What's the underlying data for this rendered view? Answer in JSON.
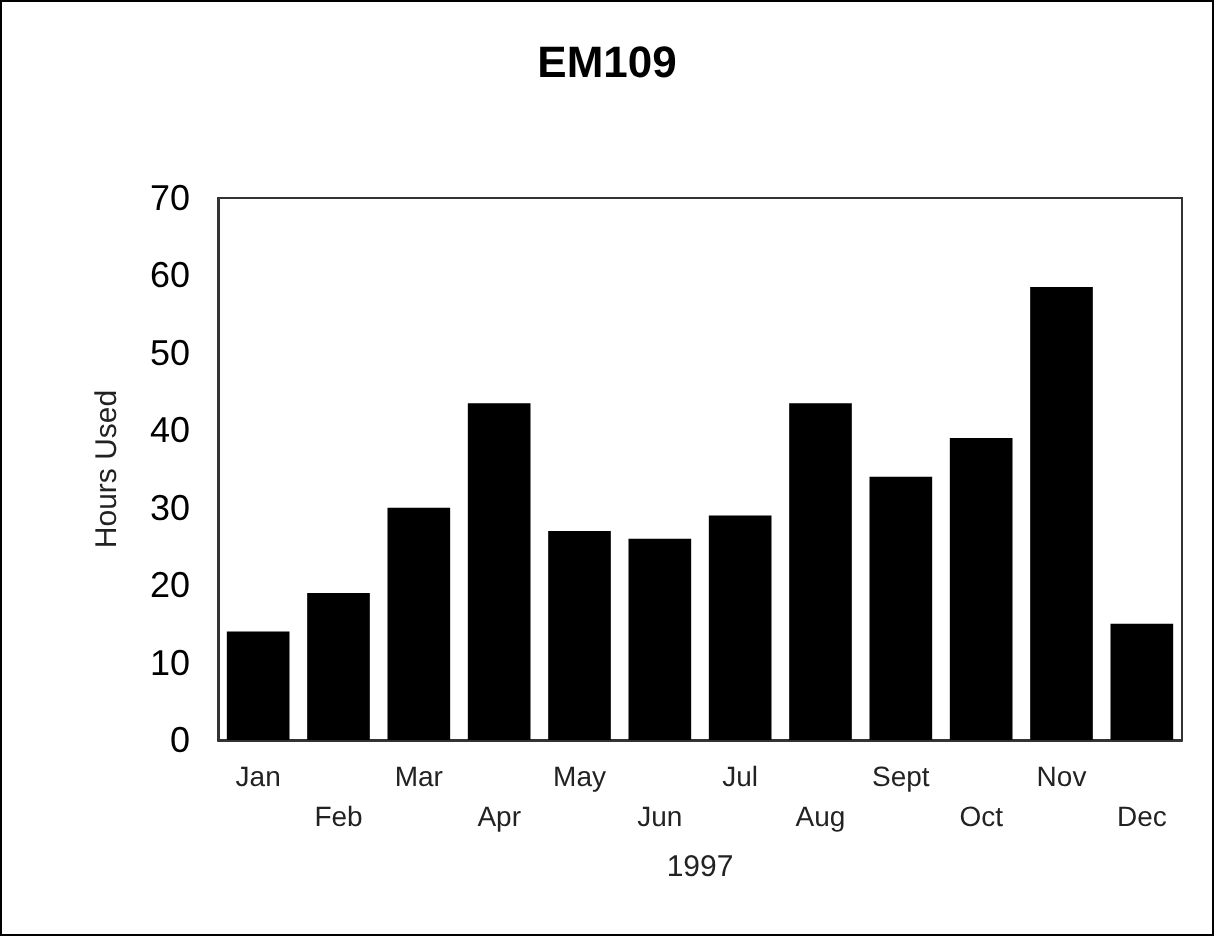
{
  "chart_data": {
    "type": "bar",
    "title": "EM109",
    "xlabel": "1997",
    "ylabel": "Hours Used",
    "categories": [
      "Jan",
      "Feb",
      "Mar",
      "Apr",
      "May",
      "Jun",
      "Jul",
      "Aug",
      "Sept",
      "Oct",
      "Nov",
      "Dec"
    ],
    "values": [
      14,
      19,
      30,
      43.5,
      27,
      26,
      29,
      43.5,
      34,
      39,
      58.5,
      15
    ],
    "color": "#000000",
    "ylim": [
      0,
      70
    ],
    "yticks": [
      0,
      10,
      20,
      30,
      40,
      50,
      60,
      70
    ]
  }
}
